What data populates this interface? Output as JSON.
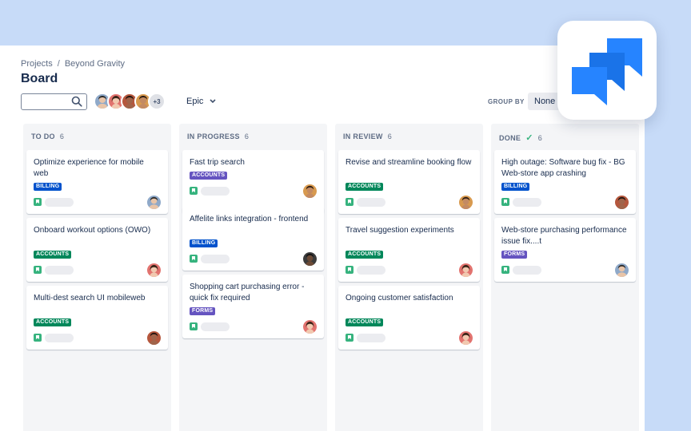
{
  "breadcrumb": {
    "projects": "Projects",
    "separator": "/",
    "project": "Beyond Gravity"
  },
  "page_title": "Board",
  "search": {
    "placeholder": ""
  },
  "avatars": {
    "more_label": "+3"
  },
  "filters": {
    "epic_label": "Epic",
    "group_by_label": "GROUP BY",
    "group_by_value": "None"
  },
  "colors": {
    "billing": "#0052cc",
    "accounts": "#00875a",
    "forms": "#6554c0",
    "story": "#36b37e",
    "logo": "#2684ff"
  },
  "columns": [
    {
      "title": "TO DO",
      "count": "6",
      "cards": [
        {
          "title": "Optimize experience for mobile web",
          "label": "BILLING"
        },
        {
          "title": "Onboard workout options (OWO)",
          "label": "ACCOUNTS"
        },
        {
          "title": "Multi-dest search UI mobileweb",
          "label": "ACCOUNTS"
        }
      ]
    },
    {
      "title": "IN PROGRESS",
      "count": "6",
      "cards": [
        {
          "title": "Fast trip search",
          "label": "ACCOUNTS"
        },
        {
          "title": "Affelite links integration - frontend",
          "label": "BILLING"
        },
        {
          "title": "Shopping cart purchasing error - quick fix required",
          "label": "FORMS"
        }
      ]
    },
    {
      "title": "IN REVIEW",
      "count": "6",
      "cards": [
        {
          "title": "Revise and streamline booking flow",
          "label": "ACCOUNTS"
        },
        {
          "title": "Travel suggestion experiments",
          "label": "ACCOUNTS"
        },
        {
          "title": "Ongoing customer satisfaction",
          "label": "ACCOUNTS"
        }
      ]
    },
    {
      "title": "DONE",
      "count": "6",
      "cards": [
        {
          "title": "High outage: Software bug fix - BG Web-store app crashing",
          "label": "BILLING"
        },
        {
          "title": "Web-store purchasing performance issue fix....t",
          "label": "FORMS"
        }
      ]
    }
  ]
}
